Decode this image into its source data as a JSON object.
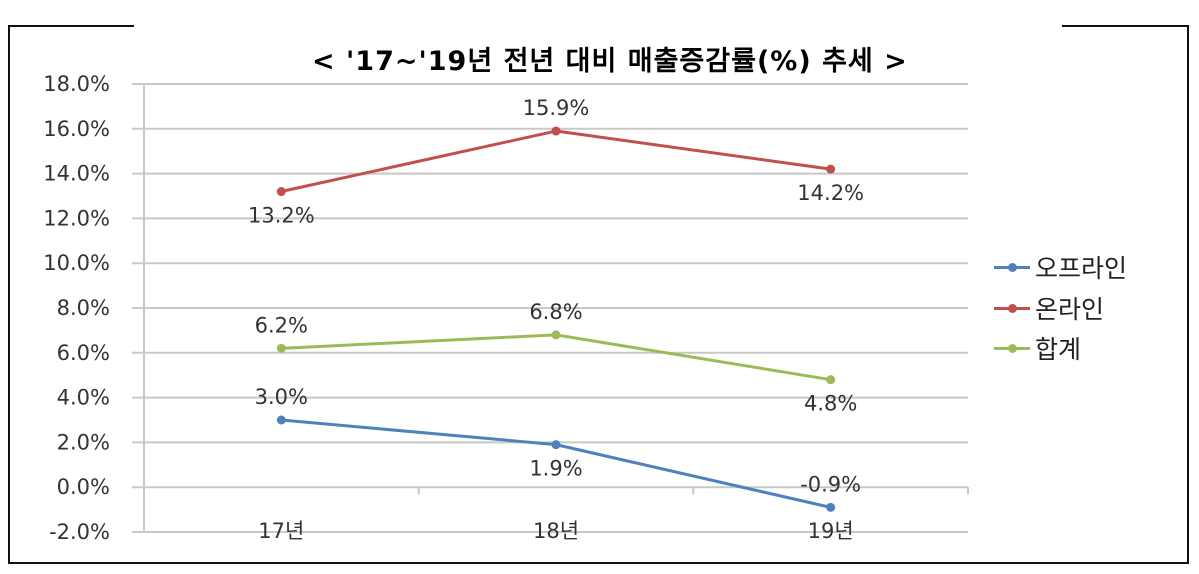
{
  "title": "< '17~'19년 전년 대비 매출증감률(%) 추세 >",
  "colors": {
    "offline": "#4F81BD",
    "online": "#C0504D",
    "total": "#9BBB59",
    "grid": "#C8C8C8",
    "frame": "#111111"
  },
  "legend": {
    "items": [
      {
        "label": "오프라인",
        "color": "#4F81BD"
      },
      {
        "label": "온라인",
        "color": "#C0504D"
      },
      {
        "label": "합계",
        "color": "#9BBB59"
      }
    ]
  },
  "chart_data": {
    "type": "line",
    "title": "< '17~'19년 전년 대비 매출증감률(%) 추세 >",
    "xlabel": "",
    "ylabel": "",
    "categories": [
      "17년",
      "18년",
      "19년"
    ],
    "series": [
      {
        "name": "오프라인",
        "values": [
          3.0,
          1.9,
          -0.9
        ],
        "labels": [
          "3.0%",
          "1.9%",
          "-0.9%"
        ],
        "color": "#4F81BD"
      },
      {
        "name": "온라인",
        "values": [
          13.2,
          15.9,
          14.2
        ],
        "labels": [
          "13.2%",
          "15.9%",
          "14.2%"
        ],
        "color": "#C0504D"
      },
      {
        "name": "합계",
        "values": [
          6.2,
          6.8,
          4.8
        ],
        "labels": [
          "6.2%",
          "6.8%",
          "4.8%"
        ],
        "color": "#9BBB59"
      }
    ],
    "ylim": [
      -2.0,
      18.0
    ],
    "yticks": [
      18.0,
      16.0,
      14.0,
      12.0,
      10.0,
      8.0,
      6.0,
      4.0,
      2.0,
      0.0,
      -2.0
    ],
    "ytick_labels": [
      "18.0%",
      "16.0%",
      "14.0%",
      "12.0%",
      "10.0%",
      "8.0%",
      "6.0%",
      "4.0%",
      "2.0%",
      "0.0%",
      "-2.0%"
    ],
    "grid": true,
    "legend_position": "right",
    "data_labels": true
  }
}
